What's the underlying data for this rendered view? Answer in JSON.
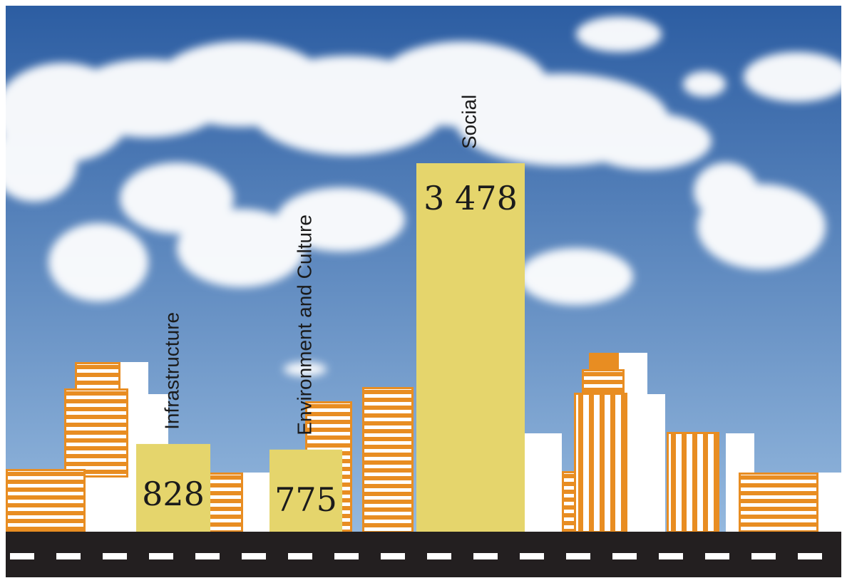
{
  "chart_data": {
    "type": "bar",
    "categories": [
      "Infrastructure",
      "Environment and Culture",
      "Social"
    ],
    "values": [
      828,
      775,
      3478
    ],
    "value_labels": [
      "828",
      "775",
      "3 478"
    ],
    "bar_color": "#e5d56c",
    "title": "",
    "xlabel": "",
    "ylabel": ""
  },
  "palette": {
    "sky_top": "#2c5da2",
    "sky_bottom": "#9dc0e3",
    "building_orange": "#e88d22",
    "building_white": "#ffffff",
    "road": "#231f20",
    "road_marking": "#ffffff"
  }
}
